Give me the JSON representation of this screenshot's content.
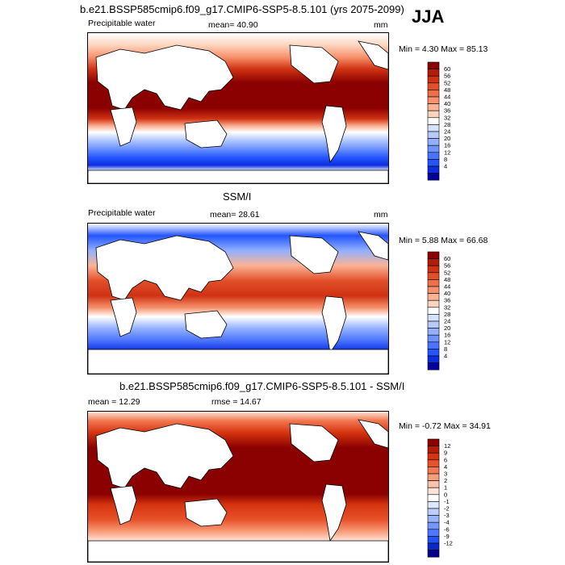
{
  "season": "JJA",
  "panels": [
    {
      "id": "model",
      "title": "b.e21.BSSP585cmip6.f09_g17.CMIP6-SSP5-8.5.101 (yrs 2075-2099)",
      "left_label": "Precipitable water",
      "center_label": "mean=  40.90",
      "units": "mm",
      "minmax": "Min =   4.30 Max =  85.13",
      "colorbar": {
        "labels": [
          "60",
          "56",
          "52",
          "48",
          "44",
          "40",
          "36",
          "32",
          "28",
          "24",
          "20",
          "16",
          "12",
          "8",
          "4"
        ],
        "colors": [
          "#8b0000",
          "#b01d0a",
          "#cf3213",
          "#e2502a",
          "#ef7048",
          "#f7916b",
          "#fbb394",
          "#fcd5bf",
          "#ffffff",
          "#d5e3ff",
          "#b5cbff",
          "#92b0ff",
          "#6e93ff",
          "#4a74ff",
          "#2355ff",
          "#0b2ee0",
          "#00009c"
        ]
      }
    },
    {
      "id": "obs",
      "title": "SSM/I",
      "left_label": "Precipitable water",
      "center_label": "mean=  28.61",
      "units": "mm",
      "minmax": "Min =   5.88 Max =  66.68",
      "colorbar": {
        "labels": [
          "60",
          "56",
          "52",
          "48",
          "44",
          "40",
          "36",
          "32",
          "28",
          "24",
          "20",
          "16",
          "12",
          "8",
          "4"
        ],
        "colors": [
          "#8b0000",
          "#b01d0a",
          "#cf3213",
          "#e2502a",
          "#ef7048",
          "#f7916b",
          "#fbb394",
          "#fcd5bf",
          "#ffffff",
          "#d5e3ff",
          "#b5cbff",
          "#92b0ff",
          "#6e93ff",
          "#4a74ff",
          "#2355ff",
          "#0b2ee0",
          "#00009c"
        ]
      }
    },
    {
      "id": "diff",
      "title": "b.e21.BSSP585cmip6.f09_g17.CMIP6-SSP5-8.5.101 - SSM/I",
      "left_label": "mean =  12.29",
      "center_label": "rmse =  14.67",
      "units": "",
      "minmax": "Min =  -0.72 Max =  34.91",
      "colorbar": {
        "labels": [
          "12",
          "9",
          "6",
          "4",
          "3",
          "2",
          "1",
          "0",
          "-1",
          "-2",
          "-3",
          "-4",
          "-6",
          "-9",
          "-12"
        ],
        "colors": [
          "#8b0000",
          "#b51c05",
          "#d5340f",
          "#e8532a",
          "#f27852",
          "#f99d7c",
          "#fcc2aa",
          "#fde4d7",
          "#ffffff",
          "#dfe8ff",
          "#bccfff",
          "#98b4ff",
          "#7398ff",
          "#4c78ff",
          "#2254f5",
          "#0a28c8",
          "#00008a"
        ]
      }
    }
  ]
}
